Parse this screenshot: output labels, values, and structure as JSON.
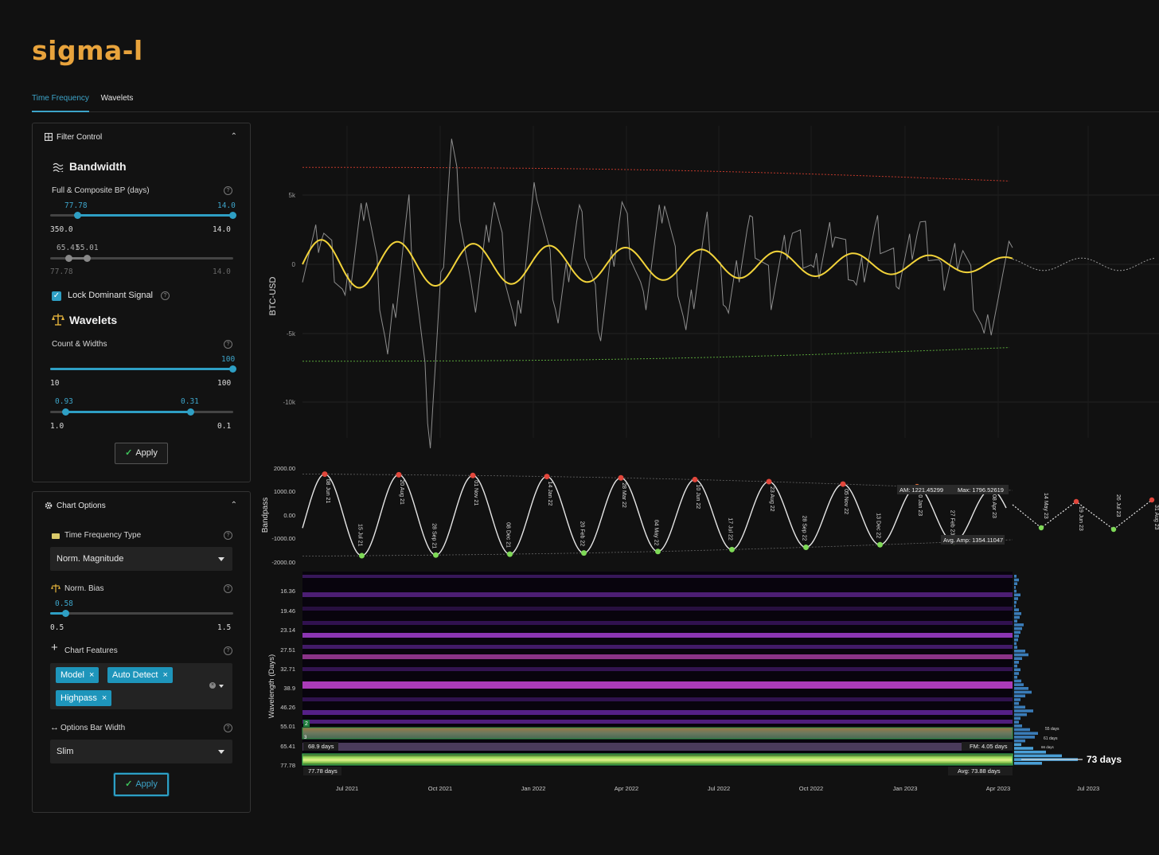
{
  "app": {
    "logo": "sigma-l"
  },
  "tabs": [
    {
      "label": "Time Frequency",
      "active": true
    },
    {
      "label": "Wavelets",
      "active": false
    }
  ],
  "filter_control": {
    "title": "Filter Control",
    "bandwidth": {
      "title": "Bandwidth",
      "label": "Full & Composite BP (days)",
      "range1": {
        "low_value": "77.78",
        "high_value": "14.0",
        "min": "350.0",
        "max": "14.0"
      },
      "range2": {
        "low_value": "65.41",
        "high_value": "55.01",
        "min": "77.78",
        "max": "14.0"
      }
    },
    "lock_dominant_signal": {
      "label": "Lock Dominant Signal",
      "checked": true
    },
    "wavelets": {
      "title": "Wavelets",
      "label": "Count & Widths",
      "count": {
        "value": "100",
        "min": "10",
        "max": "100"
      },
      "widths": {
        "low_value": "0.93",
        "high_value": "0.31",
        "min": "1.0",
        "max": "0.1"
      }
    },
    "apply_label": "Apply"
  },
  "chart_options": {
    "title": "Chart Options",
    "tf_type": {
      "label": "Time Frequency Type",
      "value": "Norm. Magnitude"
    },
    "norm_bias": {
      "label": "Norm. Bias",
      "value": "0.58",
      "min": "0.5",
      "max": "1.5"
    },
    "chart_features": {
      "label": "Chart Features",
      "chips": [
        "Model",
        "Auto Detect",
        "Highpass"
      ]
    },
    "options_bar_width": {
      "label": "Options Bar Width",
      "value": "Slim"
    },
    "apply_label": "Apply"
  },
  "chart_data": [
    {
      "type": "line",
      "ylabel": "BTC-USD",
      "y_ticks": [
        "5k",
        "0",
        "-5k",
        "-10k"
      ],
      "ylim": [
        -12500,
        9500
      ],
      "series": [
        {
          "name": "",
          "style": "grey price oscillation",
          "x": [
            0,
            0.03,
            0.06,
            0.09,
            0.12,
            0.15,
            0.18,
            0.21,
            0.24,
            0.27,
            0.3,
            0.33,
            0.36,
            0.39,
            0.42,
            0.45,
            0.48,
            0.51,
            0.54,
            0.57,
            0.6,
            0.63,
            0.66,
            0.69,
            0.72,
            0.75,
            0.78,
            0.81,
            0.84,
            0.87,
            0.9,
            0.93,
            0.96,
            1.0
          ],
          "y": [
            0,
            2500,
            -3000,
            5500,
            -6500,
            4000,
            -12500,
            8800,
            -3500,
            5000,
            -5000,
            6000,
            -4000,
            3500,
            -4500,
            4500,
            -3000,
            5000,
            -5000,
            2500,
            -3000,
            3000,
            -2000,
            2500,
            -1000,
            3000,
            -1500,
            2500,
            -1000,
            2800,
            -1200,
            1500,
            -5500,
            1200
          ]
        },
        {
          "name": "",
          "style": "yellow dominant cycle",
          "amplitude_start": 1800,
          "amplitude_end": 500,
          "period_days": 73
        },
        {
          "name": "",
          "style": "red dashed upper envelope",
          "y_start": 7000,
          "y_end": 6000
        },
        {
          "name": "",
          "style": "green dashed lower envelope",
          "y_start": -7000,
          "y_end": -6000
        }
      ]
    },
    {
      "type": "line",
      "ylabel": "Bandpass",
      "y_ticks": [
        "2000.00",
        "1000.00",
        "0.00",
        "-1000.00",
        "-2000.00"
      ],
      "ylim": [
        -2000,
        2000
      ],
      "peaks": [
        "08 Jun 21",
        "20 Aug 21",
        "01 Nov 21",
        "14 Jan 22",
        "28 Mar 22",
        "10 Jun 22",
        "23 Aug 22",
        "05 Nov 22",
        "20 Jan 23",
        "08 Apr 23"
      ],
      "troughs": [
        "15 Jul 21",
        "28 Sep 21",
        "08 Dec 21",
        "20 Feb 22",
        "04 May 22",
        "17 Jul 22",
        "28 Sep 22",
        "13 Dec 22",
        "27 Feb 23"
      ],
      "projected": [
        "14 May 23",
        "19 Jun 23",
        "26 Jul 23",
        "31 Aug 23"
      ],
      "annotations": {
        "am": "AM: 1221.45299",
        "max": "Max: 1796.52619",
        "avg_amp": "Avg. Amp: 1354.11047"
      }
    },
    {
      "type": "heatmap",
      "ylabel": "Wavelength (Days)",
      "y_ticks": [
        "16.36",
        "19.46",
        "23.14",
        "27.51",
        "32.71",
        "38.9",
        "46.26",
        "55.01",
        "65.41",
        "77.78"
      ],
      "x_ticks": [
        "Jul 2021",
        "Oct 2021",
        "Jan 2022",
        "Apr 2022",
        "Jul 2022",
        "Oct 2022",
        "Jan 2023",
        "Apr 2023",
        "Jul 2023"
      ],
      "band_labels": {
        "low": "68.9 days",
        "fm": "FM: 4.05 days",
        "full": "77.78 days",
        "avg": "Avg: 73.88 days",
        "marker2": "2",
        "marker3": "3"
      },
      "side_labels": {
        "a": "55 days",
        "b": "61 days",
        "c": "66 days",
        "dominant": "73 days"
      }
    }
  ]
}
